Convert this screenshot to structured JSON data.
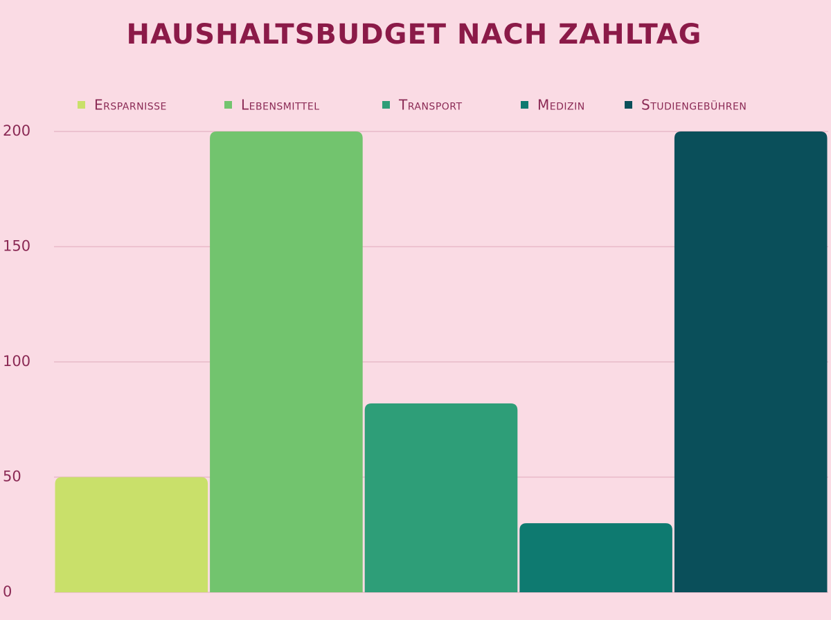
{
  "chart_data": {
    "type": "bar",
    "title": "HAUSHALTSBUDGET NACH ZAHLTAG",
    "series": [
      {
        "name": "Ersparnisse",
        "color": "#c9e06a",
        "values": [
          50
        ]
      },
      {
        "name": "Lebensmittel",
        "color": "#72c46e",
        "values": [
          200
        ]
      },
      {
        "name": "Transport",
        "color": "#2e9e78",
        "values": [
          82
        ]
      },
      {
        "name": "Medizin",
        "color": "#0e7a70",
        "values": [
          30
        ]
      },
      {
        "name": "Studiengebühren",
        "color": "#0a4f5a",
        "values": [
          200
        ]
      }
    ],
    "ylim": [
      0,
      200
    ],
    "yticks": [
      0,
      50,
      100,
      150,
      200
    ],
    "grid": true,
    "legend": "top"
  }
}
